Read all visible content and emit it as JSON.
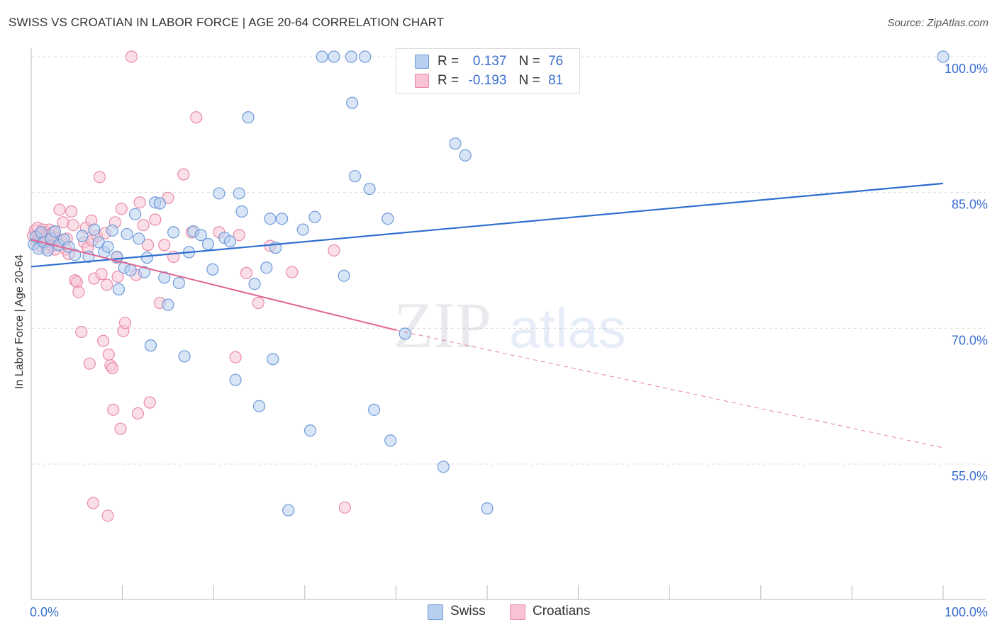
{
  "title": "SWISS VS CROATIAN IN LABOR FORCE | AGE 20-64 CORRELATION CHART",
  "source": "Source: ZipAtlas.com",
  "watermark": {
    "part1": "ZIP",
    "part2": "atlas"
  },
  "legend": {
    "rows": [
      {
        "r_label": "R =",
        "r_value": "0.137",
        "n_label": "N =",
        "n_value": "76"
      },
      {
        "r_label": "R =",
        "r_value": "-0.193",
        "n_label": "N =",
        "n_value": "81"
      }
    ],
    "bottom": [
      {
        "label": "Swiss"
      },
      {
        "label": "Croatians"
      }
    ]
  },
  "colors": {
    "swiss_fill": "#b8cff0",
    "swiss_stroke": "#6f9ad8",
    "swiss_line": "#2f6fd0",
    "croat_fill": "#f8c4d4",
    "croat_stroke": "#e98aa8",
    "croat_line": "#e06590",
    "tick_text": "#3a6fd0",
    "grid": "#dddddd"
  },
  "chart_data": {
    "type": "scatter",
    "title": "SWISS VS CROATIAN IN LABOR FORCE | AGE 20-64 CORRELATION CHART",
    "xlabel": "",
    "ylabel": "In Labor Force | Age 20-64",
    "xlim": [
      0,
      100
    ],
    "ylim": [
      40,
      100
    ],
    "x_tick_labels": [
      "0.0%",
      "100.0%"
    ],
    "y_ticks": [
      55,
      70,
      85,
      100
    ],
    "y_tick_labels": [
      "55.0%",
      "70.0%",
      "85.0%",
      "100.0%"
    ],
    "series": [
      {
        "name": "Swiss",
        "r": 0.137,
        "n": 76,
        "trend": {
          "x": [
            0,
            100
          ],
          "y": [
            76.8,
            86.0
          ]
        },
        "points": [
          [
            0.3,
            79.3
          ],
          [
            0.5,
            80.1
          ],
          [
            0.8,
            78.8
          ],
          [
            1.1,
            80.6
          ],
          [
            1.4,
            79.5
          ],
          [
            1.8,
            78.6
          ],
          [
            2.2,
            79.9
          ],
          [
            2.6,
            80.7
          ],
          [
            3.0,
            79.2
          ],
          [
            3.6,
            79.8
          ],
          [
            4.1,
            79.0
          ],
          [
            4.8,
            78.1
          ],
          [
            5.6,
            80.2
          ],
          [
            6.3,
            77.9
          ],
          [
            6.9,
            80.9
          ],
          [
            7.4,
            79.5
          ],
          [
            8.0,
            78.4
          ],
          [
            8.4,
            79.0
          ],
          [
            8.9,
            80.8
          ],
          [
            9.4,
            77.9
          ],
          [
            9.6,
            74.3
          ],
          [
            10.2,
            76.7
          ],
          [
            10.5,
            80.4
          ],
          [
            10.9,
            76.4
          ],
          [
            11.4,
            82.6
          ],
          [
            11.8,
            79.9
          ],
          [
            12.4,
            76.2
          ],
          [
            12.7,
            77.8
          ],
          [
            13.1,
            68.1
          ],
          [
            13.6,
            83.9
          ],
          [
            14.1,
            83.8
          ],
          [
            14.6,
            75.6
          ],
          [
            15.0,
            72.6
          ],
          [
            15.6,
            80.6
          ],
          [
            16.2,
            75.0
          ],
          [
            16.8,
            66.9
          ],
          [
            17.3,
            78.4
          ],
          [
            17.8,
            80.7
          ],
          [
            18.6,
            80.3
          ],
          [
            19.4,
            79.3
          ],
          [
            19.9,
            76.5
          ],
          [
            20.6,
            84.9
          ],
          [
            21.2,
            80.0
          ],
          [
            21.8,
            79.6
          ],
          [
            22.4,
            64.3
          ],
          [
            22.8,
            84.9
          ],
          [
            23.1,
            82.9
          ],
          [
            23.8,
            93.3
          ],
          [
            24.5,
            74.9
          ],
          [
            25.0,
            61.4
          ],
          [
            25.8,
            76.7
          ],
          [
            26.2,
            82.1
          ],
          [
            26.5,
            66.6
          ],
          [
            26.8,
            78.9
          ],
          [
            27.5,
            82.1
          ],
          [
            28.2,
            49.9
          ],
          [
            29.8,
            80.9
          ],
          [
            30.6,
            58.7
          ],
          [
            31.1,
            82.3
          ],
          [
            31.9,
            100.0
          ],
          [
            33.2,
            100.0
          ],
          [
            34.3,
            75.8
          ],
          [
            35.1,
            100.0
          ],
          [
            35.5,
            86.8
          ],
          [
            36.6,
            100.0
          ],
          [
            35.2,
            94.9
          ],
          [
            37.1,
            85.4
          ],
          [
            37.6,
            61.0
          ],
          [
            39.1,
            82.1
          ],
          [
            39.4,
            57.6
          ],
          [
            41.0,
            69.4
          ],
          [
            45.2,
            54.7
          ],
          [
            46.5,
            90.4
          ],
          [
            47.6,
            89.1
          ],
          [
            50.0,
            50.1
          ],
          [
            100.0,
            100.0
          ]
        ]
      },
      {
        "name": "Croatians",
        "r": -0.193,
        "n": 81,
        "trend": {
          "x": [
            0,
            40
          ],
          "y": [
            79.8,
            69.8
          ]
        },
        "trend_dashed": {
          "x": [
            40,
            100
          ],
          "y": [
            69.8,
            56.8
          ]
        },
        "points": [
          [
            0.2,
            80.2
          ],
          [
            0.4,
            80.8
          ],
          [
            0.6,
            79.6
          ],
          [
            0.7,
            81.1
          ],
          [
            0.9,
            80.2
          ],
          [
            1.0,
            79.1
          ],
          [
            1.2,
            80.3
          ],
          [
            1.3,
            80.9
          ],
          [
            1.5,
            80.0
          ],
          [
            1.6,
            79.5
          ],
          [
            1.7,
            78.9
          ],
          [
            1.8,
            80.5
          ],
          [
            2.0,
            80.9
          ],
          [
            2.1,
            80.0
          ],
          [
            2.3,
            79.1
          ],
          [
            2.4,
            80.6
          ],
          [
            2.6,
            78.7
          ],
          [
            2.8,
            80.0
          ],
          [
            3.1,
            83.1
          ],
          [
            3.3,
            79.6
          ],
          [
            3.5,
            81.7
          ],
          [
            3.8,
            78.7
          ],
          [
            4.1,
            78.2
          ],
          [
            4.4,
            82.9
          ],
          [
            4.6,
            81.4
          ],
          [
            4.8,
            75.3
          ],
          [
            5.0,
            75.1
          ],
          [
            5.2,
            74.0
          ],
          [
            5.5,
            69.6
          ],
          [
            5.8,
            79.5
          ],
          [
            6.0,
            81.1
          ],
          [
            6.2,
            78.9
          ],
          [
            6.4,
            66.1
          ],
          [
            6.6,
            81.9
          ],
          [
            6.7,
            79.7
          ],
          [
            6.9,
            75.5
          ],
          [
            7.2,
            80.2
          ],
          [
            7.5,
            86.7
          ],
          [
            7.7,
            76.0
          ],
          [
            7.9,
            68.6
          ],
          [
            8.1,
            80.5
          ],
          [
            8.3,
            74.8
          ],
          [
            8.5,
            67.1
          ],
          [
            8.7,
            65.9
          ],
          [
            8.9,
            65.6
          ],
          [
            9.0,
            61.0
          ],
          [
            9.2,
            81.7
          ],
          [
            9.4,
            77.8
          ],
          [
            9.5,
            75.7
          ],
          [
            9.8,
            58.9
          ],
          [
            9.9,
            83.2
          ],
          [
            10.1,
            69.7
          ],
          [
            10.3,
            70.6
          ],
          [
            11.0,
            100.0
          ],
          [
            11.5,
            75.9
          ],
          [
            11.7,
            60.6
          ],
          [
            11.9,
            83.9
          ],
          [
            12.3,
            81.4
          ],
          [
            12.8,
            79.2
          ],
          [
            13.0,
            61.8
          ],
          [
            13.6,
            82.0
          ],
          [
            14.1,
            72.8
          ],
          [
            14.6,
            79.2
          ],
          [
            15.0,
            84.4
          ],
          [
            15.6,
            77.9
          ],
          [
            16.7,
            87.0
          ],
          [
            17.6,
            80.6
          ],
          [
            18.1,
            93.3
          ],
          [
            20.6,
            80.6
          ],
          [
            22.4,
            66.8
          ],
          [
            22.8,
            80.3
          ],
          [
            23.6,
            76.1
          ],
          [
            24.9,
            72.8
          ],
          [
            26.2,
            79.1
          ],
          [
            28.6,
            76.2
          ],
          [
            33.2,
            78.6
          ],
          [
            34.4,
            50.2
          ],
          [
            6.8,
            50.7
          ],
          [
            8.4,
            49.3
          ],
          [
            2.0,
            80.3
          ],
          [
            3.9,
            79.9
          ]
        ]
      }
    ]
  }
}
